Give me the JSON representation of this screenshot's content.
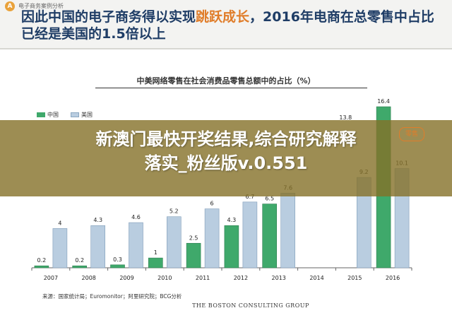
{
  "header": {
    "logo_letter": "A",
    "source_tag": "电子商务案例分析",
    "headline_part1": "因此中国的电子商务得以实现",
    "headline_highlight": "跳跃成长",
    "headline_part2": "，2016年电商在总零售中占比已经是美国的1.5倍以上"
  },
  "overlay": {
    "line1": "新澳门最快开奖结果,综合研究解释",
    "line2": "落实_粉丝版v.0.551",
    "partial_label": "零售"
  },
  "chart_data": {
    "type": "bar",
    "title": "中美网络零售在社会消费品零售总额中的占比（%）",
    "categories": [
      "2007",
      "2008",
      "2009",
      "2010",
      "2011",
      "2012",
      "2013",
      "2014",
      "2015",
      "2016"
    ],
    "series": [
      {
        "name": "中国",
        "values": [
          0.2,
          0.2,
          0.3,
          1.0,
          2.5,
          4.3,
          6.5,
          null,
          null,
          16.4
        ]
      },
      {
        "name": "美国",
        "values": [
          4.0,
          4.3,
          4.6,
          5.2,
          6.0,
          6.7,
          7.6,
          null,
          9.2,
          10.1
        ]
      }
    ],
    "visible_extra_labels": [
      {
        "category": "2015",
        "series": "中国",
        "text": "13.8"
      }
    ],
    "ylim": [
      0,
      17
    ],
    "colors": {
      "中国": "#3fa96b",
      "美国": "#b9cde0"
    },
    "legend_position": "top-left",
    "grid": false
  },
  "footer": {
    "footnote": "来源：国家统计局；Euromonitor；阿里研究院；BCG分析",
    "brand": "THE BOSTON CONSULTING GROUP"
  }
}
